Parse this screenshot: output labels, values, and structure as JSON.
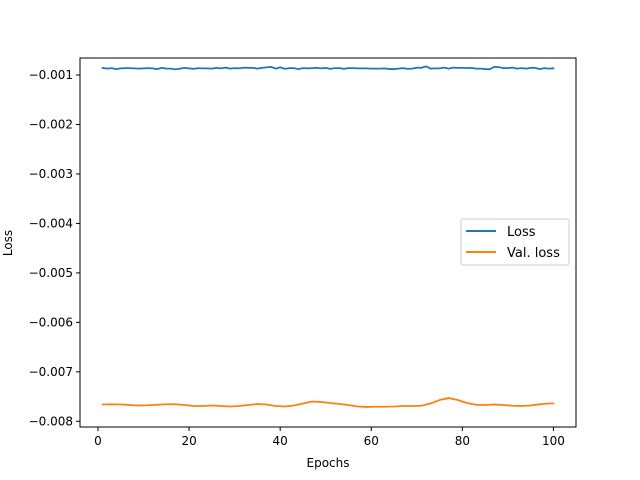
{
  "chart_data": {
    "type": "line",
    "title": "",
    "xlabel": "Epochs",
    "ylabel": "Loss",
    "xlim": [
      -3.95,
      104.95
    ],
    "ylim": [
      -0.008115,
      -0.000656
    ],
    "xticks": [
      0,
      20,
      40,
      60,
      80,
      100
    ],
    "xtick_labels": [
      "0",
      "20",
      "40",
      "60",
      "80",
      "100"
    ],
    "yticks": [
      -0.008,
      -0.007,
      -0.006,
      -0.005,
      -0.004,
      -0.003,
      -0.002,
      -0.001
    ],
    "ytick_labels": [
      "−0.008",
      "−0.007",
      "−0.006",
      "−0.005",
      "−0.004",
      "−0.003",
      "−0.002",
      "−0.001"
    ],
    "grid": false,
    "legend_position": "center-right",
    "series": [
      {
        "name": "Loss",
        "color": "#1f77b4",
        "x": [
          1,
          2,
          3,
          4,
          5,
          6,
          7,
          8,
          9,
          10,
          11,
          12,
          13,
          14,
          15,
          16,
          17,
          18,
          19,
          20,
          21,
          22,
          23,
          24,
          25,
          26,
          27,
          28,
          29,
          30,
          31,
          32,
          33,
          34,
          35,
          36,
          37,
          38,
          39,
          40,
          41,
          42,
          43,
          44,
          45,
          46,
          47,
          48,
          49,
          50,
          51,
          52,
          53,
          54,
          55,
          56,
          57,
          58,
          59,
          60,
          61,
          62,
          63,
          64,
          65,
          66,
          67,
          68,
          69,
          70,
          71,
          72,
          73,
          74,
          75,
          76,
          77,
          78,
          79,
          80,
          81,
          82,
          83,
          84,
          85,
          86,
          87,
          88,
          89,
          90,
          91,
          92,
          93,
          94,
          95,
          96,
          97,
          98,
          99,
          100
        ],
        "y": [
          -0.000855,
          -0.00087,
          -0.00086,
          -0.00088,
          -0.000865,
          -0.00086,
          -0.00086,
          -0.000865,
          -0.00087,
          -0.000865,
          -0.00086,
          -0.000865,
          -0.00088,
          -0.000855,
          -0.00087,
          -0.00087,
          -0.000885,
          -0.00087,
          -0.000855,
          -0.000865,
          -0.000875,
          -0.00086,
          -0.000865,
          -0.000865,
          -0.00087,
          -0.000855,
          -0.000865,
          -0.00085,
          -0.00087,
          -0.00086,
          -0.000865,
          -0.00085,
          -0.000855,
          -0.000855,
          -0.00087,
          -0.000855,
          -0.000845,
          -0.000835,
          -0.00087,
          -0.000845,
          -0.000875,
          -0.00086,
          -0.00086,
          -0.00088,
          -0.00086,
          -0.000865,
          -0.00086,
          -0.000855,
          -0.000865,
          -0.000855,
          -0.000875,
          -0.00086,
          -0.00086,
          -0.000875,
          -0.00086,
          -0.00086,
          -0.000865,
          -0.000865,
          -0.000865,
          -0.00087,
          -0.00087,
          -0.00087,
          -0.000865,
          -0.00088,
          -0.00088,
          -0.00087,
          -0.00086,
          -0.000875,
          -0.00087,
          -0.00085,
          -0.000855,
          -0.000825,
          -0.00087,
          -0.000865,
          -0.000865,
          -0.00085,
          -0.00087,
          -0.00085,
          -0.000855,
          -0.000855,
          -0.00086,
          -0.000855,
          -0.00087,
          -0.00087,
          -0.00088,
          -0.000885,
          -0.000835,
          -0.00084,
          -0.00086,
          -0.00086,
          -0.00085,
          -0.00087,
          -0.00086,
          -0.00087,
          -0.000855,
          -0.000855,
          -0.00088,
          -0.00086,
          -0.00087,
          -0.000865
        ]
      },
      {
        "name": "Val. loss",
        "color": "#ff7f0e",
        "x": [
          1,
          3,
          5,
          7,
          9,
          11,
          13,
          15,
          17,
          19,
          21,
          23,
          25,
          27,
          29,
          31,
          33,
          35,
          37,
          39,
          41,
          43,
          45,
          47,
          49,
          51,
          53,
          55,
          57,
          59,
          61,
          63,
          65,
          67,
          69,
          71,
          73,
          75,
          77,
          79,
          81,
          83,
          85,
          87,
          89,
          91,
          93,
          95,
          97,
          99,
          100
        ],
        "y": [
          -0.00766,
          -0.007655,
          -0.00766,
          -0.00767,
          -0.00768,
          -0.007675,
          -0.007665,
          -0.007655,
          -0.007655,
          -0.00767,
          -0.00769,
          -0.00769,
          -0.00768,
          -0.00769,
          -0.0077,
          -0.00769,
          -0.00767,
          -0.00765,
          -0.00766,
          -0.00769,
          -0.0077,
          -0.00768,
          -0.00764,
          -0.0076,
          -0.00761,
          -0.00763,
          -0.00765,
          -0.00767,
          -0.0077,
          -0.00771,
          -0.007705,
          -0.007705,
          -0.0077,
          -0.00769,
          -0.00769,
          -0.007685,
          -0.00764,
          -0.00757,
          -0.00753,
          -0.00757,
          -0.00763,
          -0.007665,
          -0.00767,
          -0.00766,
          -0.00767,
          -0.007685,
          -0.00769,
          -0.00768,
          -0.007655,
          -0.00764,
          -0.00764
        ]
      }
    ]
  }
}
